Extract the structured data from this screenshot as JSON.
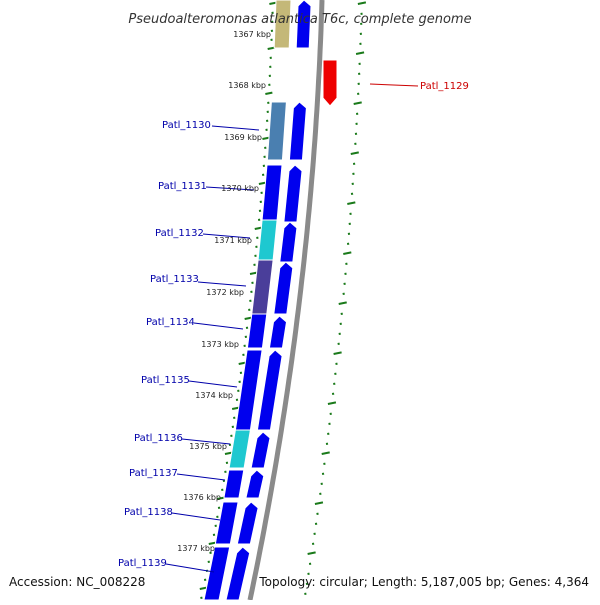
{
  "title": "Pseudoalteromonas atlantica T6c, complete genome",
  "accession": "Accession: NC_008228",
  "topology": "Topology: circular; Length: 5,187,005 bp; Genes: 4,364",
  "colors": {
    "blue": "#0000ee",
    "steel": "#4a7fb0",
    "cyan": "#1ec8d0",
    "purple": "#4a3e9a",
    "khaki": "#c4b878",
    "red": "#ee0000",
    "tick": "#1a7a1a",
    "backbone": "#8a8a8a",
    "label_blue": "#0000aa",
    "label_red": "#cc0000"
  },
  "kbp_labels": [
    "1367 kbp",
    "1368 kbp",
    "1369 kbp",
    "1370 kbp",
    "1371 kbp",
    "1372 kbp",
    "1373 kbp",
    "1374 kbp",
    "1375 kbp",
    "1376 kbp",
    "1377 kbp"
  ],
  "genes": [
    {
      "label": "Patl_1129",
      "color": "red"
    },
    {
      "label": "Patl_1130",
      "color": "steel"
    },
    {
      "label": "Patl_1131",
      "color": "blue"
    },
    {
      "label": "Patl_1132",
      "color": "cyan"
    },
    {
      "label": "Patl_1133",
      "color": "purple"
    },
    {
      "label": "Patl_1134",
      "color": "blue"
    },
    {
      "label": "Patl_1135",
      "color": "blue"
    },
    {
      "label": "Patl_1136",
      "color": "cyan"
    },
    {
      "label": "Patl_1137",
      "color": "blue"
    },
    {
      "label": "Patl_1138",
      "color": "blue"
    },
    {
      "label": "Patl_1139",
      "color": "blue"
    }
  ]
}
